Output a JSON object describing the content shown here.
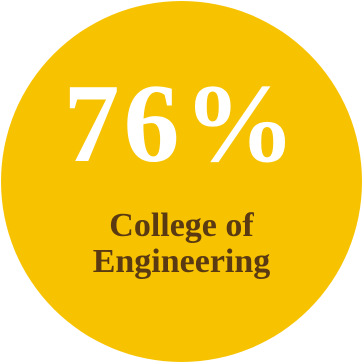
{
  "stat": {
    "value": "76%",
    "label_line1": "College of",
    "label_line2": "Engineering"
  },
  "colors": {
    "circle": "#f7c300",
    "value_text": "#ffffff",
    "label_text": "#5a3a12"
  }
}
